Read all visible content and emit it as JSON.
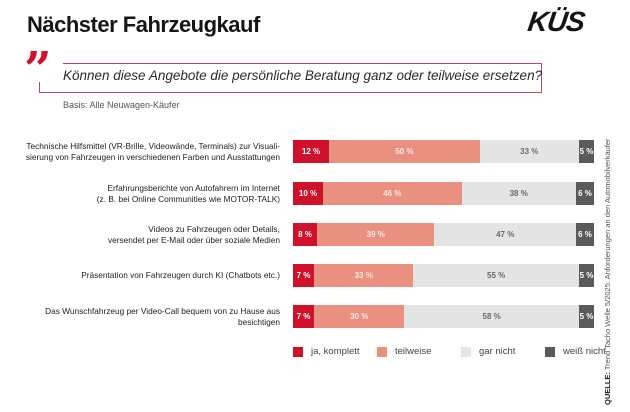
{
  "header": {
    "title": "Nächster Fahrzeugkauf",
    "logo": "KÜS"
  },
  "quote": {
    "mark": "”",
    "question": "Können diese Angebote die persönliche Beratung ganz oder teilweise ersetzen?",
    "basis": "Basis: Alle Neuwagen-Käufer"
  },
  "colors": {
    "ja_komplett": "#d0112b",
    "teilweise": "#ea9080",
    "gar_nicht": "#e4e4e4",
    "weiss_nicht": "#5a5a5a",
    "accent_frame": "#c0465a"
  },
  "source": {
    "label": "QUELLE:",
    "text": " Trend Tacho Welle 5/2025: Anforderungen an den Automobilverkäufer"
  },
  "chart_data": {
    "type": "bar",
    "orientation": "horizontal",
    "stacked": true,
    "title": "Nächster Fahrzeugkauf",
    "subtitle": "Können diese Angebote die persönliche Beratung ganz oder teilweise ersetzen?",
    "xlabel": "",
    "ylabel": "",
    "xlim": [
      0,
      100
    ],
    "unit": "%",
    "grid": false,
    "legend_position": "bottom",
    "categories": [
      [
        "Technische Hilfsmittel (VR-Brille, Videowände, Terminals) zur Visuali-",
        "sierung von Fahrzeugen in verschiedenen Farben und Ausstattungen"
      ],
      [
        "Erfahrungsberichte von Autofahrern im Internet",
        "(z. B. bei Online Communities wie MOTOR-TALK)"
      ],
      [
        "Videos zu Fahrzeugen oder Details,",
        "versendet per E-Mail oder über soziale Medien"
      ],
      [
        "Präsentation von Fahrzeugen durch KI (Chatbots etc.)"
      ],
      [
        "Das Wunschfahrzeug per Video-Call bequem von zu Hause aus",
        "besichtigen"
      ]
    ],
    "series": [
      {
        "name": "ja, komplett",
        "values": [
          12,
          10,
          8,
          7,
          7
        ]
      },
      {
        "name": "teilweise",
        "values": [
          50,
          46,
          39,
          33,
          30
        ]
      },
      {
        "name": "gar nicht",
        "values": [
          33,
          38,
          47,
          55,
          58
        ]
      },
      {
        "name": "weiß nicht",
        "values": [
          5,
          6,
          6,
          5,
          5
        ]
      }
    ]
  }
}
